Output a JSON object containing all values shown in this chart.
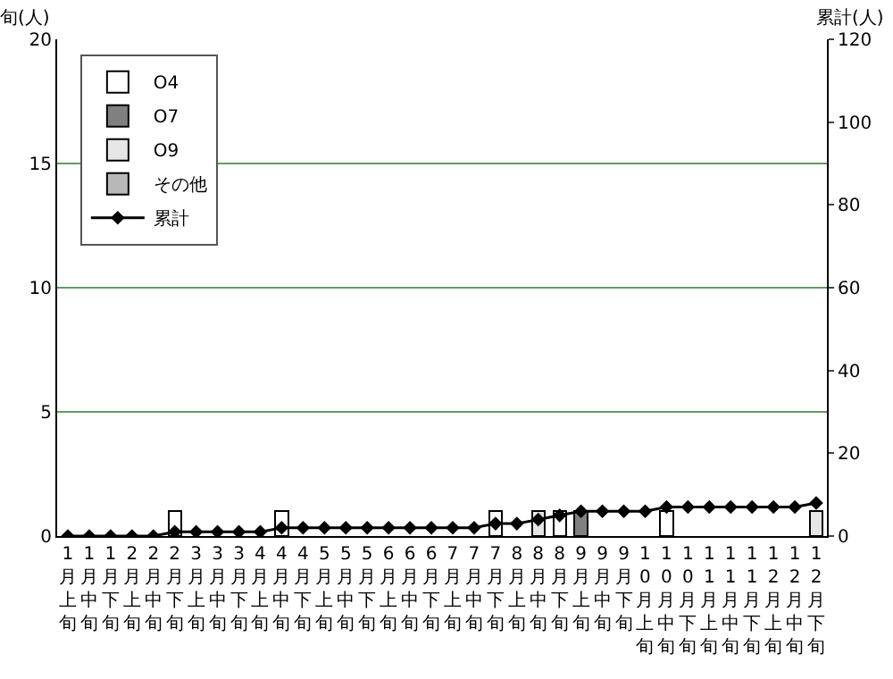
{
  "chart_data": {
    "type": "bar",
    "stacked": true,
    "ylabel": "旬(人)",
    "y2label": "累計(人)",
    "categories": [
      "1月上旬",
      "1月中旬",
      "1月下旬",
      "2月上旬",
      "2月中旬",
      "2月下旬",
      "3月上旬",
      "3月中旬",
      "3月下旬",
      "4月上旬",
      "4月中旬",
      "4月下旬",
      "5月上旬",
      "5月中旬",
      "5月下旬",
      "6月上旬",
      "6月中旬",
      "6月下旬",
      "7月上旬",
      "7月中旬",
      "7月下旬",
      "8月上旬",
      "8月中旬",
      "8月下旬",
      "9月上旬",
      "9月中旬",
      "9月下旬",
      "10月上旬",
      "10月中旬",
      "10月下旬",
      "11月上旬",
      "11月中旬",
      "11月下旬",
      "12月上旬",
      "12月中旬",
      "12月下旬"
    ],
    "series": [
      {
        "name": "O4",
        "color": "#ffffff",
        "values": [
          null,
          null,
          null,
          null,
          null,
          1,
          null,
          null,
          null,
          null,
          1,
          null,
          null,
          null,
          null,
          null,
          null,
          null,
          null,
          null,
          1,
          null,
          null,
          1,
          null,
          null,
          null,
          null,
          1,
          null,
          null,
          null,
          null,
          null,
          null,
          null
        ]
      },
      {
        "name": "O7",
        "color": "#808080",
        "values": [
          null,
          null,
          null,
          null,
          null,
          null,
          null,
          null,
          null,
          null,
          null,
          null,
          null,
          null,
          null,
          null,
          null,
          null,
          null,
          null,
          null,
          null,
          null,
          null,
          1,
          null,
          null,
          null,
          null,
          null,
          null,
          null,
          null,
          null,
          null,
          null
        ]
      },
      {
        "name": "O9",
        "color": "#e6e6e6",
        "values": [
          null,
          null,
          null,
          null,
          null,
          null,
          null,
          null,
          null,
          null,
          null,
          null,
          null,
          null,
          null,
          null,
          null,
          null,
          null,
          null,
          null,
          null,
          1,
          null,
          null,
          null,
          null,
          null,
          null,
          null,
          null,
          null,
          null,
          null,
          null,
          1
        ]
      },
      {
        "name": "その他",
        "color": "#b8b8b8",
        "values": [
          null,
          null,
          null,
          null,
          null,
          null,
          null,
          null,
          null,
          null,
          null,
          null,
          null,
          null,
          null,
          null,
          null,
          null,
          null,
          null,
          null,
          null,
          null,
          null,
          null,
          null,
          null,
          null,
          null,
          null,
          null,
          null,
          null,
          null,
          null,
          null
        ]
      },
      {
        "name": "累計",
        "type": "line",
        "axis": "y2",
        "color": "#000000",
        "marker": "diamond",
        "values": [
          0,
          0,
          0,
          0,
          0,
          1,
          1,
          1,
          1,
          1,
          2,
          2,
          2,
          2,
          2,
          2,
          2,
          2,
          2,
          2,
          3,
          3,
          4,
          5,
          6,
          6,
          6,
          6,
          7,
          7,
          7,
          7,
          7,
          7,
          7,
          8
        ]
      }
    ],
    "ylim": [
      0,
      20
    ],
    "yticks": [
      0,
      5,
      10,
      15,
      20
    ],
    "y2lim": [
      0,
      120
    ],
    "y2ticks": [
      0,
      20,
      40,
      60,
      80,
      100,
      120
    ],
    "grid": "y",
    "legend": "top left"
  }
}
